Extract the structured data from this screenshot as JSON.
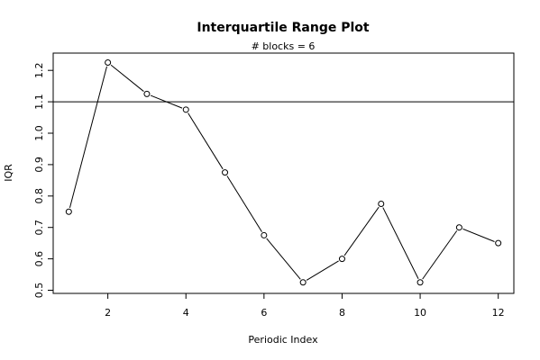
{
  "chart_data": {
    "type": "line",
    "title": "Interquartile Range Plot",
    "subtitle": "# blocks =  6",
    "xlabel": "Periodic Index",
    "ylabel": "IQR",
    "xlim": [
      0.6,
      12.4
    ],
    "ylim": [
      0.49,
      1.255
    ],
    "x_ticks": [
      2,
      4,
      6,
      8,
      10,
      12
    ],
    "x_tick_labels": [
      "2",
      "4",
      "6",
      "8",
      "10",
      "12"
    ],
    "y_ticks": [
      0.5,
      0.6,
      0.7,
      0.8,
      0.9,
      1.0,
      1.1,
      1.2
    ],
    "y_tick_labels": [
      "0.5",
      "0.6",
      "0.7",
      "0.8",
      "0.9",
      "1.0",
      "1.1",
      "1.2"
    ],
    "x": [
      1,
      2,
      3,
      4,
      5,
      6,
      7,
      8,
      9,
      10,
      11,
      12
    ],
    "values": [
      0.75,
      1.225,
      1.125,
      1.075,
      0.875,
      0.675,
      0.525,
      0.6,
      0.775,
      0.525,
      0.7,
      0.65
    ],
    "reference_line": 1.1,
    "marker": "open-circle",
    "grid": false,
    "legend": "none"
  }
}
